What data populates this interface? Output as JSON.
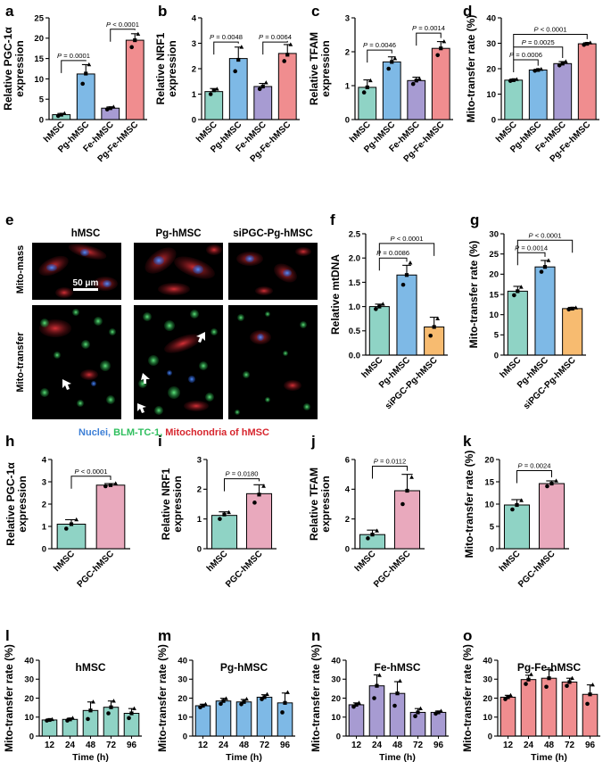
{
  "colors": {
    "hMSC": "#8fd3c5",
    "Pg-hMSC": "#7eb9e6",
    "Fe-hMSC": "#a79bd2",
    "Pg-Fe-hMSC": "#f08d8f",
    "siPGC-Pg-hMSC": "#f7bb70",
    "PGC-hMSC": "#e9a9bd",
    "nuclei": "#3d7fd6",
    "blm": "#2fbf5e",
    "mito": "#d7262e"
  },
  "panel_letters": [
    "a",
    "b",
    "c",
    "d",
    "e",
    "f",
    "g",
    "h",
    "i",
    "j",
    "k",
    "l",
    "m",
    "n",
    "o"
  ],
  "micrograph": {
    "columns": [
      "hMSC",
      "Pg-hMSC",
      "siPGC-Pg-hMSC"
    ],
    "rows": [
      "Mito-mass",
      "Mito-transfer"
    ],
    "scale_bar": "50 μm",
    "legend": {
      "nuclei": "Nuclei",
      "sep1": ", ",
      "blm": "BLM-TC-1",
      "sep2": ", ",
      "mito": "Mitochondria of hMSC"
    }
  },
  "chart_data": [
    {
      "panel": "a",
      "type": "bar",
      "ylabel": [
        "Relative PGC-1α",
        "expression"
      ],
      "categories": [
        "hMSC",
        "Pg-hMSC",
        "Fe-hMSC",
        "Pg-Fe-hMSC"
      ],
      "values": [
        1.2,
        11.2,
        2.8,
        19.5
      ],
      "points": [
        [
          0.9,
          1.2,
          1.5
        ],
        [
          8.8,
          11.3,
          13.5
        ],
        [
          2.5,
          2.8,
          3.1
        ],
        [
          17.8,
          19.5,
          21.0
        ]
      ],
      "err": [
        0.3,
        2.3,
        0.3,
        1.6
      ],
      "ylim": [
        0,
        25
      ],
      "yticks": [
        0,
        5,
        10,
        15,
        20,
        25
      ],
      "comparisons": [
        {
          "a": 0,
          "b": 1,
          "label": "P = 0.0001",
          "y": 14.5
        },
        {
          "a": 2,
          "b": 3,
          "label": "P < 0.0001",
          "y": 22.2
        }
      ]
    },
    {
      "panel": "b",
      "type": "bar",
      "ylabel": [
        "Relative NRF1",
        "expression"
      ],
      "categories": [
        "hMSC",
        "Pg-hMSC",
        "Fe-hMSC",
        "Pg-Fe-hMSC"
      ],
      "values": [
        1.1,
        2.4,
        1.3,
        2.6
      ],
      "points": [
        [
          1.0,
          1.15,
          1.2
        ],
        [
          1.9,
          2.35,
          2.85
        ],
        [
          1.2,
          1.3,
          1.45
        ],
        [
          2.3,
          2.55,
          2.95
        ]
      ],
      "err": [
        0.12,
        0.45,
        0.12,
        0.35
      ],
      "ylim": [
        0,
        4
      ],
      "yticks": [
        0,
        1,
        2,
        3,
        4
      ],
      "comparisons": [
        {
          "a": 0,
          "b": 1,
          "label": "P = 0.0048",
          "y": 3.05
        },
        {
          "a": 2,
          "b": 3,
          "label": "P = 0.0064",
          "y": 3.05
        }
      ]
    },
    {
      "panel": "c",
      "type": "bar",
      "ylabel": [
        "Relative TFAM",
        "expression"
      ],
      "categories": [
        "hMSC",
        "Pg-hMSC",
        "Fe-hMSC",
        "Pg-Fe-hMSC"
      ],
      "values": [
        0.95,
        1.7,
        1.15,
        2.1
      ],
      "points": [
        [
          0.8,
          0.95,
          1.15
        ],
        [
          1.5,
          1.7,
          1.8
        ],
        [
          1.05,
          1.15,
          1.2
        ],
        [
          1.9,
          2.1,
          2.3
        ]
      ],
      "err": [
        0.22,
        0.15,
        0.1,
        0.2
      ],
      "ylim": [
        0,
        3
      ],
      "yticks": [
        0,
        1,
        2,
        3
      ],
      "comparisons": [
        {
          "a": 0,
          "b": 1,
          "label": "P = 0.0046",
          "y": 2.05
        },
        {
          "a": 2,
          "b": 3,
          "label": "P = 0.0014",
          "y": 2.55
        }
      ]
    },
    {
      "panel": "d",
      "type": "bar",
      "ylabel": [
        "Mito-transfer rate (%)"
      ],
      "categories": [
        "hMSC",
        "Pg-hMSC",
        "Fe-hMSC",
        "Pg-Fe-hMSC"
      ],
      "values": [
        15.5,
        19.5,
        22.0,
        29.8
      ],
      "points": [
        [
          15.2,
          15.5,
          15.8
        ],
        [
          19.2,
          19.5,
          19.8
        ],
        [
          21.3,
          22.0,
          22.8
        ],
        [
          29.4,
          29.8,
          30.2
        ]
      ],
      "err": [
        0.4,
        0.3,
        0.8,
        0.4
      ],
      "ylim": [
        0,
        40
      ],
      "yticks": [
        0,
        10,
        20,
        30,
        40
      ],
      "comparisons": [
        {
          "a": 0,
          "b": 1,
          "label": "P = 0.0006",
          "y": 23.5
        },
        {
          "a": 0,
          "b": 2,
          "label": "P = 0.0025",
          "y": 28.5
        },
        {
          "a": 0,
          "b": 3,
          "label": "P < 0.0001",
          "y": 33.5
        }
      ]
    },
    {
      "panel": "f",
      "type": "bar",
      "ylabel": [
        "Relative mtDNA"
      ],
      "categories": [
        "hMSC",
        "Pg-hMSC",
        "siPGC-Pg-hMSC"
      ],
      "values": [
        1.0,
        1.65,
        0.58
      ],
      "points": [
        [
          0.95,
          1.0,
          1.05
        ],
        [
          1.45,
          1.65,
          1.9
        ],
        [
          0.4,
          0.58,
          0.75
        ]
      ],
      "err": [
        0.05,
        0.2,
        0.2
      ],
      "ylim": [
        0,
        2.5
      ],
      "yticks": [
        0.0,
        0.5,
        1.0,
        1.5,
        2.0,
        2.5
      ],
      "comparisons": [
        {
          "a": 0,
          "b": 1,
          "label": "P = 0.0086",
          "y": 2.0
        },
        {
          "a": 0,
          "b": 2,
          "label": "P < 0.0001",
          "y": 2.3
        }
      ]
    },
    {
      "panel": "g",
      "type": "bar",
      "ylabel": [
        "Mito-transfer rate (%)"
      ],
      "categories": [
        "hMSC",
        "Pg-hMSC",
        "siPGC-Pg-hMSC"
      ],
      "values": [
        15.8,
        21.8,
        11.5
      ],
      "points": [
        [
          14.8,
          15.8,
          16.8
        ],
        [
          20.6,
          21.8,
          23.4
        ],
        [
          11.3,
          11.5,
          11.7
        ]
      ],
      "err": [
        1.2,
        1.6,
        0.3
      ],
      "ylim": [
        0,
        30
      ],
      "yticks": [
        0,
        5,
        10,
        15,
        20,
        25,
        30
      ],
      "comparisons": [
        {
          "a": 0,
          "b": 1,
          "label": "P = 0.0014",
          "y": 25.3
        },
        {
          "a": 0,
          "b": 2,
          "label": "P < 0.0001",
          "y": 28.4
        }
      ]
    },
    {
      "panel": "h",
      "type": "bar",
      "ylabel": [
        "Relative PGC-1α",
        "expression"
      ],
      "categories": [
        "hMSC",
        "PGC-hMSC"
      ],
      "values": [
        1.1,
        2.85
      ],
      "points": [
        [
          0.9,
          1.1,
          1.3
        ],
        [
          2.8,
          2.85,
          2.92
        ]
      ],
      "err": [
        0.2,
        0.07
      ],
      "ylim": [
        0,
        4
      ],
      "yticks": [
        0,
        1,
        2,
        3,
        4
      ],
      "comparisons": [
        {
          "a": 0,
          "b": 1,
          "label": "P < 0.0001",
          "y": 3.25
        }
      ]
    },
    {
      "panel": "i",
      "type": "bar",
      "ylabel": [
        "Relative NRF1",
        "expression"
      ],
      "categories": [
        "hMSC",
        "PGC-hMSC"
      ],
      "values": [
        1.12,
        1.85
      ],
      "points": [
        [
          1.0,
          1.15,
          1.22
        ],
        [
          1.55,
          1.82,
          2.1
        ]
      ],
      "err": [
        0.12,
        0.3
      ],
      "ylim": [
        0,
        3
      ],
      "yticks": [
        0,
        1,
        2,
        3
      ],
      "comparisons": [
        {
          "a": 0,
          "b": 1,
          "label": "P = 0.0180",
          "y": 2.35
        }
      ]
    },
    {
      "panel": "j",
      "type": "bar",
      "ylabel": [
        "Relative TFAM",
        "expression"
      ],
      "categories": [
        "hMSC",
        "PGC-hMSC"
      ],
      "values": [
        0.95,
        3.9
      ],
      "points": [
        [
          0.7,
          0.95,
          1.2
        ],
        [
          3.0,
          3.9,
          4.8
        ]
      ],
      "err": [
        0.3,
        1.1
      ],
      "ylim": [
        0,
        6
      ],
      "yticks": [
        0,
        2,
        4,
        6
      ],
      "comparisons": [
        {
          "a": 0,
          "b": 1,
          "label": "P = 0.0112",
          "y": 5.55
        }
      ]
    },
    {
      "panel": "k",
      "type": "bar",
      "ylabel": [
        "Mito-transfer rate (%)"
      ],
      "categories": [
        "hMSC",
        "PGC-hMSC"
      ],
      "values": [
        9.8,
        14.6
      ],
      "points": [
        [
          8.8,
          9.8,
          10.8
        ],
        [
          14.0,
          14.6,
          15.2
        ]
      ],
      "err": [
        1.2,
        0.6
      ],
      "ylim": [
        0,
        20
      ],
      "yticks": [
        0,
        5,
        10,
        15,
        20
      ],
      "comparisons": [
        {
          "a": 0,
          "b": 1,
          "label": "P = 0.0024",
          "y": 17.5
        }
      ]
    },
    {
      "panel": "l",
      "type": "bar",
      "title": "hMSC",
      "ylabel": [
        "Mito-transfer rate (%)"
      ],
      "xlabel": "Time (h)",
      "color": "hMSC",
      "categories": [
        "12",
        "24",
        "48",
        "72",
        "96"
      ],
      "values": [
        8.5,
        8.8,
        13.5,
        15.2,
        12.0
      ],
      "points": [
        [
          8.2,
          8.5,
          8.8
        ],
        [
          8.2,
          8.8,
          9.5
        ],
        [
          9.0,
          13.5,
          18.0
        ],
        [
          12.0,
          15.2,
          18.5
        ],
        [
          9.5,
          12.0,
          14.5
        ]
      ],
      "err": [
        0.3,
        0.6,
        4.5,
        3.3,
        2.5
      ],
      "ylim": [
        0,
        40
      ],
      "yticks": [
        0,
        10,
        20,
        30,
        40
      ]
    },
    {
      "panel": "m",
      "type": "bar",
      "title": "Pg-hMSC",
      "ylabel": [
        "Mito-transfer rate (%)"
      ],
      "xlabel": "Time (h)",
      "color": "Pg-hMSC",
      "categories": [
        "12",
        "24",
        "48",
        "72",
        "96"
      ],
      "values": [
        16.0,
        18.5,
        18.0,
        20.5,
        17.5
      ],
      "points": [
        [
          15.2,
          16.0,
          16.8
        ],
        [
          17.0,
          18.5,
          19.8
        ],
        [
          16.8,
          18.0,
          19.5
        ],
        [
          19.5,
          20.5,
          22.0
        ],
        [
          12.5,
          17.5,
          23.0
        ]
      ],
      "err": [
        0.8,
        1.4,
        1.3,
        1.3,
        5.2
      ],
      "ylim": [
        0,
        40
      ],
      "yticks": [
        0,
        10,
        20,
        30,
        40
      ]
    },
    {
      "panel": "n",
      "type": "bar",
      "title": "Fe-hMSC",
      "ylabel": [
        "Mito-transfer rate (%)"
      ],
      "xlabel": "Time (h)",
      "color": "Fe-hMSC",
      "categories": [
        "12",
        "24",
        "48",
        "72",
        "96"
      ],
      "values": [
        16.5,
        26.5,
        22.5,
        12.5,
        12.5
      ],
      "points": [
        [
          15.5,
          16.5,
          17.5
        ],
        [
          20.0,
          26.5,
          32.0
        ],
        [
          16.0,
          22.5,
          29.0
        ],
        [
          10.5,
          12.5,
          14.5
        ],
        [
          11.8,
          12.5,
          13.2
        ]
      ],
      "err": [
        1.0,
        5.8,
        6.2,
        2.0,
        0.7
      ],
      "ylim": [
        0,
        40
      ],
      "yticks": [
        0,
        10,
        20,
        30,
        40
      ]
    },
    {
      "panel": "o",
      "type": "bar",
      "title": "Pg-Fe-hMSC",
      "ylabel": [
        "Mito-transfer rate (%)"
      ],
      "xlabel": "Time (h)",
      "color": "Pg-Fe-hMSC",
      "categories": [
        "12",
        "24",
        "48",
        "72",
        "96"
      ],
      "values": [
        20.5,
        29.8,
        30.5,
        28.5,
        22.0
      ],
      "points": [
        [
          19.5,
          20.5,
          21.5
        ],
        [
          27.5,
          29.8,
          32.5
        ],
        [
          26.0,
          30.5,
          35.0
        ],
        [
          26.5,
          28.5,
          30.5
        ],
        [
          17.0,
          22.0,
          27.0
        ]
      ],
      "err": [
        1.0,
        2.3,
        4.5,
        2.0,
        5.0
      ],
      "ylim": [
        0,
        40
      ],
      "yticks": [
        0,
        10,
        20,
        30,
        40
      ]
    }
  ]
}
